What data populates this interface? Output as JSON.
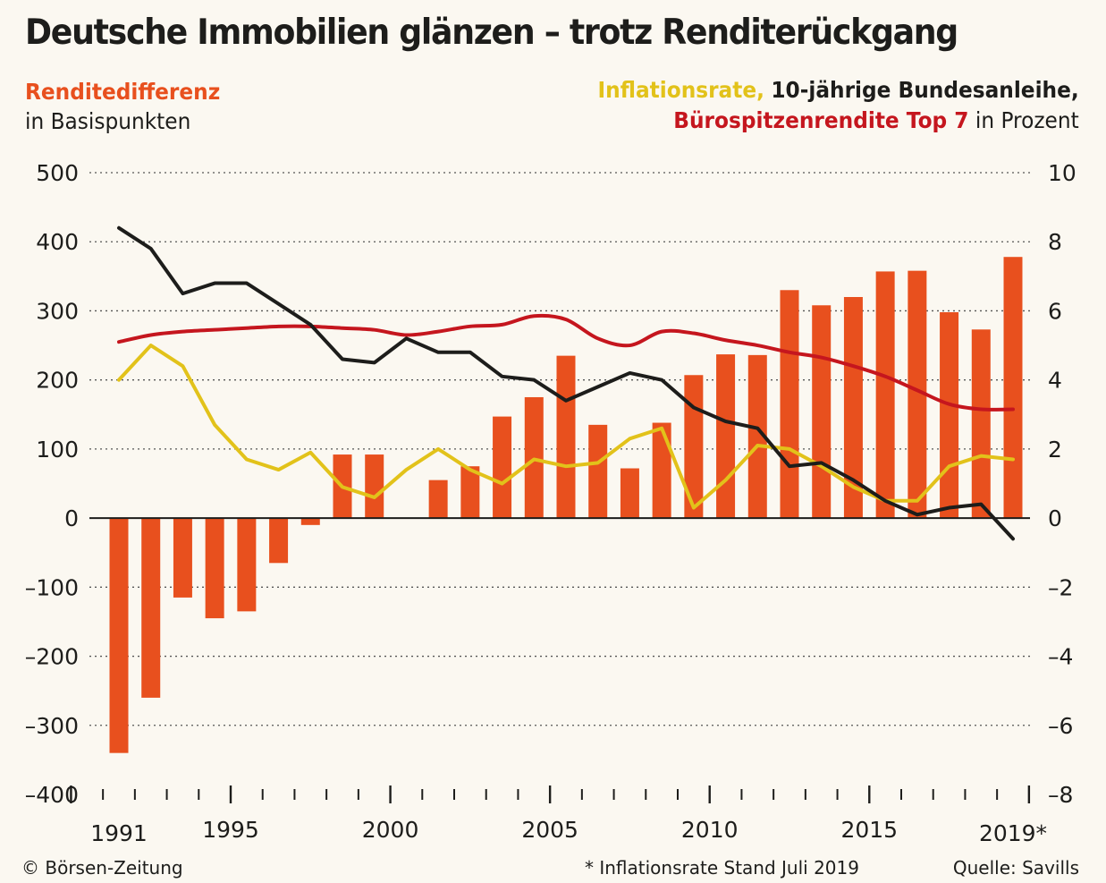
{
  "title": "Deutsche Immobilien glänzen – trotz Renditerückgang",
  "legend": {
    "left_series": "Renditedifferenz",
    "left_unit": "in Basispunkten",
    "right_series_1": "Inflationsrate,",
    "right_series_2": "10-jährige Bundesanleihe,",
    "right_series_3": "Bürospitzenrendite Top 7",
    "right_unit": "in Prozent"
  },
  "footer": {
    "copyright": "© Börsen-Zeitung",
    "note": "* Inflationsrate Stand Juli 2019",
    "source": "Quelle: Savills"
  },
  "colors": {
    "bars": "#e8501e",
    "inflation": "#e2c21a",
    "bund": "#1d1d1b",
    "office": "#c5161e"
  },
  "chart_data": {
    "type": "bar+line",
    "x": [
      1991,
      1992,
      1993,
      1994,
      1995,
      1996,
      1997,
      1998,
      1999,
      2000,
      2001,
      2002,
      2003,
      2004,
      2005,
      2006,
      2007,
      2008,
      2009,
      2010,
      2011,
      2012,
      2013,
      2014,
      2015,
      2016,
      2017,
      2018,
      2019
    ],
    "x_tick_labels": [
      "1991",
      "1995",
      "2000",
      "2005",
      "2010",
      "2015",
      "2019*"
    ],
    "y_left": {
      "ylim": [
        -400,
        500
      ],
      "ticks": [
        "500",
        "400",
        "300",
        "200",
        "100",
        "0",
        "–100",
        "–200",
        "–300",
        "–400"
      ]
    },
    "y_right": {
      "ylim": [
        -8,
        10
      ],
      "ticks": [
        "10",
        "8",
        "6",
        "4",
        "2",
        "0",
        "–2",
        "–4",
        "–6",
        "–8"
      ]
    },
    "grid": "dotted horizontal",
    "series": [
      {
        "name": "Renditedifferenz",
        "kind": "bar",
        "axis": "left",
        "values": [
          -340,
          -260,
          -115,
          -145,
          -135,
          -65,
          -10,
          92,
          92,
          0,
          55,
          75,
          147,
          175,
          235,
          135,
          72,
          138,
          207,
          237,
          236,
          330,
          308,
          320,
          357,
          358,
          298,
          273,
          378
        ]
      },
      {
        "name": "Inflationsrate",
        "kind": "line",
        "axis": "right",
        "values": [
          4.0,
          5.0,
          4.4,
          2.7,
          1.7,
          1.4,
          1.9,
          0.9,
          0.6,
          1.4,
          2.0,
          1.4,
          1.0,
          1.7,
          1.5,
          1.6,
          2.3,
          2.6,
          0.3,
          1.1,
          2.1,
          2.0,
          1.5,
          0.9,
          0.5,
          0.5,
          1.5,
          1.8,
          1.7
        ]
      },
      {
        "name": "10-jährige Bundesanleihe",
        "kind": "line",
        "axis": "right",
        "values": [
          8.4,
          7.8,
          6.5,
          6.8,
          6.8,
          6.2,
          5.6,
          4.6,
          4.5,
          5.2,
          4.8,
          4.8,
          4.1,
          4.0,
          3.4,
          3.8,
          4.2,
          4.0,
          3.2,
          2.8,
          2.6,
          1.5,
          1.6,
          1.1,
          0.5,
          0.1,
          0.3,
          0.4,
          -0.6
        ]
      },
      {
        "name": "Bürospitzenrendite Top 7",
        "kind": "line",
        "axis": "right",
        "values": [
          5.1,
          5.3,
          5.4,
          5.45,
          5.5,
          5.55,
          5.55,
          5.5,
          5.45,
          5.3,
          5.4,
          5.55,
          5.6,
          5.85,
          5.75,
          5.2,
          5.0,
          5.4,
          5.35,
          5.15,
          5.0,
          4.8,
          4.65,
          4.4,
          4.1,
          3.7,
          3.3,
          3.15,
          3.15
        ]
      }
    ]
  }
}
